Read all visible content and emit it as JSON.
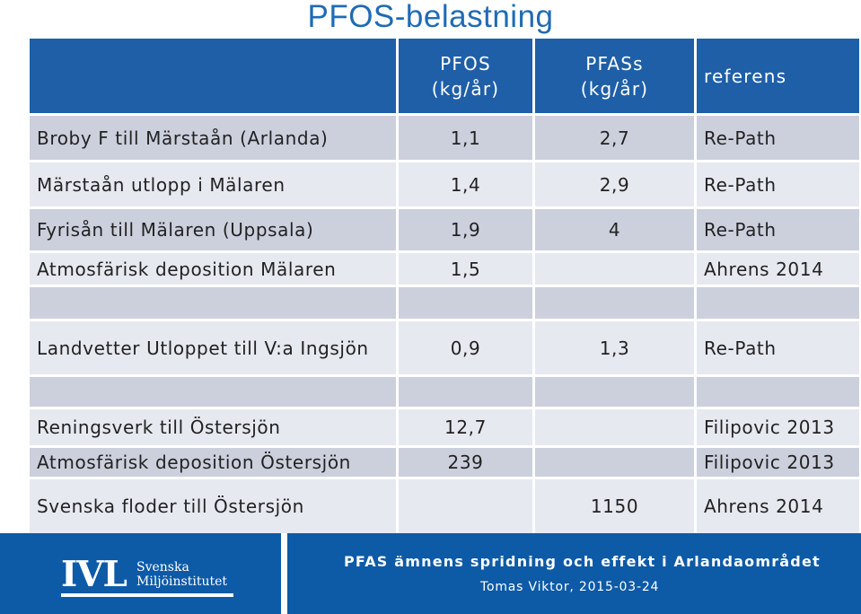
{
  "title": "PFOS-belastning",
  "table": {
    "headers": [
      "",
      "PFOS\n(kg/år)",
      "PFASs\n(kg/år)",
      "referens"
    ],
    "rows": [
      [
        "Broby F till Märstaån (Arlanda)",
        "1,1",
        "2,7",
        "Re-Path"
      ],
      [
        "Märstaån utlopp i Mälaren",
        "1,4",
        "2,9",
        "Re-Path"
      ],
      [
        "Fyrisån till Mälaren (Uppsala)",
        "1,9",
        "4",
        "Re-Path"
      ],
      [
        "Atmosfärisk deposition Mälaren",
        "1,5",
        "",
        "Ahrens 2014"
      ],
      [
        "",
        "",
        "",
        ""
      ],
      [
        "Landvetter Utloppet till V:a Ingsjön",
        "0,9",
        "1,3",
        "Re-Path"
      ],
      [
        "",
        "",
        "",
        ""
      ],
      [
        "Reningsverk till Östersjön",
        "12,7",
        "",
        "Filipovic 2013"
      ],
      [
        "Atmosfärisk deposition Östersjön",
        "239",
        "",
        "Filipovic 2013"
      ],
      [
        "Svenska floder till Östersjön",
        "",
        "1150",
        "Ahrens 2014"
      ]
    ]
  },
  "footer": {
    "logo_text": "IVL",
    "logo_name_line1": "Svenska",
    "logo_name_line2": "Miljöinstitutet",
    "presentation_title": "PFAS ämnens spridning och effekt i Arlandaområdet",
    "author_date": "Tomas Viktor, 2015-03-24"
  },
  "colors": {
    "title": "#1f6bb5",
    "header_bg": "#1f5fa8",
    "row_dark": "#ccd0dd",
    "row_light": "#e7e9f1",
    "footer_bg": "#0d5aa7"
  }
}
